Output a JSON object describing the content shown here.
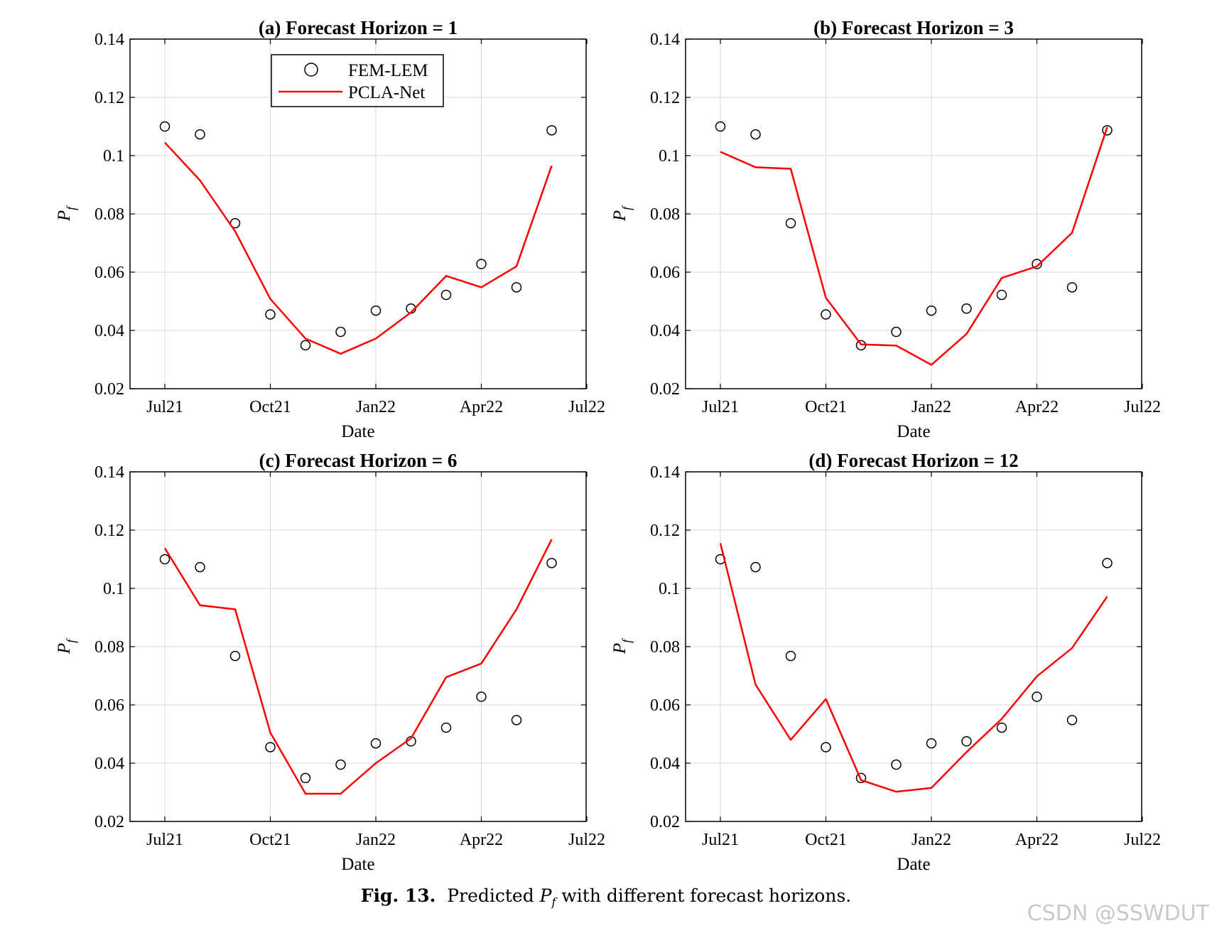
{
  "figure": {
    "caption_label": "Fig. 13.",
    "caption_pre": "Predicted",
    "caption_symbol": "P",
    "caption_sub": "f",
    "caption_post": "with different forecast horizons.",
    "watermark": "CSDN @SSWDUT"
  },
  "colors": {
    "series_line": "#ff0000",
    "markers": "#000000",
    "grid": "#d9d9d9"
  },
  "legend": {
    "marker_label": "FEM-LEM",
    "line_label": "PCLA-Net"
  },
  "chart_data": [
    {
      "type": "line",
      "title": "(a) Forecast Horizon = 1",
      "xlabel": "Date",
      "ylabel_symbol": "P",
      "ylabel_sub": "f",
      "x": [
        "Jul21",
        "Aug21",
        "Sep21",
        "Oct21",
        "Nov21",
        "Dec21",
        "Jan22",
        "Feb22",
        "Mar22",
        "Apr22",
        "May22",
        "Jun22"
      ],
      "xticks": [
        "Jul21",
        "Oct21",
        "Jan22",
        "Apr22",
        "Jul22"
      ],
      "yticks": [
        "0.02",
        "0.04",
        "0.06",
        "0.08",
        "0.1",
        "0.12",
        "0.14"
      ],
      "ylim": [
        0.02,
        0.14
      ],
      "grid": true,
      "legend_position": "top-center",
      "series": [
        {
          "name": "FEM-LEM",
          "style": "markers",
          "values": [
            0.11,
            0.1073,
            0.0768,
            0.0455,
            0.0349,
            0.0395,
            0.0468,
            0.0475,
            0.0522,
            0.0628,
            0.0548,
            0.1087
          ]
        },
        {
          "name": "PCLA-Net",
          "style": "line",
          "values": [
            0.1045,
            0.0915,
            0.074,
            0.0508,
            0.0372,
            0.032,
            0.0372,
            0.0462,
            0.0587,
            0.0548,
            0.062,
            0.0965
          ]
        }
      ]
    },
    {
      "type": "line",
      "title": "(b) Forecast Horizon = 3",
      "xlabel": "Date",
      "ylabel_symbol": "P",
      "ylabel_sub": "f",
      "x": [
        "Jul21",
        "Aug21",
        "Sep21",
        "Oct21",
        "Nov21",
        "Dec21",
        "Jan22",
        "Feb22",
        "Mar22",
        "Apr22",
        "May22",
        "Jun22"
      ],
      "xticks": [
        "Jul21",
        "Oct21",
        "Jan22",
        "Apr22",
        "Jul22"
      ],
      "yticks": [
        "0.02",
        "0.04",
        "0.06",
        "0.08",
        "0.1",
        "0.12",
        "0.14"
      ],
      "ylim": [
        0.02,
        0.14
      ],
      "grid": true,
      "series": [
        {
          "name": "FEM-LEM",
          "style": "markers",
          "values": [
            0.11,
            0.1073,
            0.0768,
            0.0455,
            0.0349,
            0.0395,
            0.0468,
            0.0475,
            0.0522,
            0.0628,
            0.0548,
            0.1087
          ]
        },
        {
          "name": "PCLA-Net",
          "style": "line",
          "values": [
            0.1013,
            0.096,
            0.0955,
            0.0512,
            0.0352,
            0.0348,
            0.0282,
            0.0388,
            0.058,
            0.062,
            0.0735,
            0.1098
          ]
        }
      ]
    },
    {
      "type": "line",
      "title": "(c) Forecast Horizon = 6",
      "xlabel": "Date",
      "ylabel_symbol": "P",
      "ylabel_sub": "f",
      "x": [
        "Jul21",
        "Aug21",
        "Sep21",
        "Oct21",
        "Nov21",
        "Dec21",
        "Jan22",
        "Feb22",
        "Mar22",
        "Apr22",
        "May22",
        "Jun22"
      ],
      "xticks": [
        "Jul21",
        "Oct21",
        "Jan22",
        "Apr22",
        "Jul22"
      ],
      "yticks": [
        "0.02",
        "0.04",
        "0.06",
        "0.08",
        "0.1",
        "0.12",
        "0.14"
      ],
      "ylim": [
        0.02,
        0.14
      ],
      "grid": true,
      "series": [
        {
          "name": "FEM-LEM",
          "style": "markers",
          "values": [
            0.11,
            0.1073,
            0.0768,
            0.0455,
            0.0349,
            0.0395,
            0.0468,
            0.0475,
            0.0522,
            0.0628,
            0.0548,
            0.1087
          ]
        },
        {
          "name": "PCLA-Net",
          "style": "line",
          "values": [
            0.1138,
            0.0942,
            0.0928,
            0.0505,
            0.0295,
            0.0295,
            0.04,
            0.0485,
            0.0695,
            0.0742,
            0.0928,
            0.1168
          ]
        }
      ]
    },
    {
      "type": "line",
      "title": "(d) Forecast Horizon = 12",
      "xlabel": "Date",
      "ylabel_symbol": "P",
      "ylabel_sub": "f",
      "x": [
        "Jul21",
        "Aug21",
        "Sep21",
        "Oct21",
        "Nov21",
        "Dec21",
        "Jan22",
        "Feb22",
        "Mar22",
        "Apr22",
        "May22",
        "Jun22"
      ],
      "xticks": [
        "Jul21",
        "Oct21",
        "Jan22",
        "Apr22",
        "Jul22"
      ],
      "yticks": [
        "0.02",
        "0.04",
        "0.06",
        "0.08",
        "0.1",
        "0.12",
        "0.14"
      ],
      "ylim": [
        0.02,
        0.14
      ],
      "grid": true,
      "series": [
        {
          "name": "FEM-LEM",
          "style": "markers",
          "values": [
            0.11,
            0.1073,
            0.0768,
            0.0455,
            0.0349,
            0.0395,
            0.0468,
            0.0475,
            0.0522,
            0.0628,
            0.0548,
            0.1087
          ]
        },
        {
          "name": "PCLA-Net",
          "style": "line",
          "values": [
            0.1155,
            0.067,
            0.048,
            0.062,
            0.0342,
            0.0302,
            0.0315,
            0.0438,
            0.0552,
            0.0698,
            0.0795,
            0.0972
          ]
        }
      ]
    }
  ]
}
